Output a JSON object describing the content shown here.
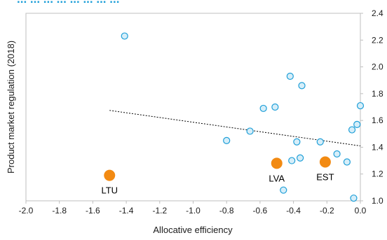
{
  "chart_data": {
    "type": "scatter",
    "title": "... ... ... ... ... ... ... ...",
    "xlabel": "Allocative efficiency",
    "ylabel": "Product market regulation (2018)",
    "xlim": [
      -2.0,
      0.0
    ],
    "ylim": [
      1.0,
      2.4
    ],
    "x_ticks": [
      "-2.0",
      "-1.8",
      "-1.6",
      "-1.4",
      "-1.2",
      "-1.0",
      "-0.8",
      "-0.6",
      "-0.4",
      "-0.2",
      "0.0"
    ],
    "y_ticks": [
      "1.0",
      "1.2",
      "1.4",
      "1.6",
      "1.8",
      "2.0",
      "2.2",
      "2.4"
    ],
    "grid": false,
    "y_axis_side": "right",
    "series": [
      {
        "points": [
          {
            "x": -1.41,
            "y": 2.23
          },
          {
            "x": -0.42,
            "y": 1.93
          },
          {
            "x": -0.35,
            "y": 1.86
          },
          {
            "x": -0.51,
            "y": 1.7
          },
          {
            "x": -0.58,
            "y": 1.69
          },
          {
            "x": -0.66,
            "y": 1.52
          },
          {
            "x": -0.8,
            "y": 1.45
          },
          {
            "x": -0.38,
            "y": 1.44
          },
          {
            "x": -0.24,
            "y": 1.44
          },
          {
            "x": -0.41,
            "y": 1.3
          },
          {
            "x": -0.36,
            "y": 1.32
          },
          {
            "x": -0.46,
            "y": 1.08
          },
          {
            "x": -0.14,
            "y": 1.35
          },
          {
            "x": -0.08,
            "y": 1.29
          },
          {
            "x": -0.05,
            "y": 1.53
          },
          {
            "x": -0.02,
            "y": 1.57
          },
          {
            "x": 0.0,
            "y": 1.71
          },
          {
            "x": -0.04,
            "y": 1.02
          }
        ],
        "color": "#1f9fd8",
        "fill": "#d6eef9"
      },
      {
        "points": [
          {
            "x": -1.5,
            "y": 1.19,
            "label": "LTU"
          },
          {
            "x": -0.5,
            "y": 1.28,
            "label": "LVA"
          },
          {
            "x": -0.21,
            "y": 1.29,
            "label": "EST"
          }
        ],
        "color": "#f28a12"
      }
    ],
    "trendline": {
      "x": [
        -1.5,
        0.0
      ],
      "y": [
        1.675,
        1.41
      ],
      "style": "dotted",
      "color": "#000000"
    }
  }
}
